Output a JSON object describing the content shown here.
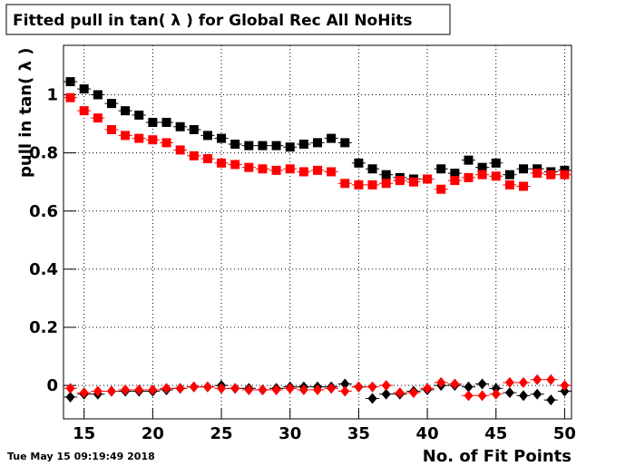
{
  "chart_data": {
    "type": "scatter",
    "title": "Fitted pull in tan( λ ) for Global Rec All NoHits",
    "x_label": "No. of Fit Points",
    "y_label": "pull in tan( λ )",
    "timestamp": "Tue May 15 09:19:49 2018",
    "x": [
      14,
      15,
      16,
      17,
      18,
      19,
      20,
      21,
      22,
      23,
      24,
      25,
      26,
      27,
      28,
      29,
      30,
      31,
      32,
      33,
      34,
      35,
      36,
      37,
      38,
      39,
      40,
      41,
      42,
      43,
      44,
      45,
      46,
      47,
      48,
      49,
      50
    ],
    "series": [
      {
        "color": "#000000",
        "marker": "square",
        "values": [
          1.045,
          1.02,
          1.0,
          0.97,
          0.945,
          0.93,
          0.905,
          0.905,
          0.89,
          0.88,
          0.86,
          0.85,
          0.83,
          0.825,
          0.825,
          0.825,
          0.82,
          0.83,
          0.835,
          0.85,
          0.835,
          0.765,
          0.745,
          0.725,
          0.715,
          0.71,
          0.71,
          0.745,
          0.73,
          0.775,
          0.75,
          0.765,
          0.725,
          0.745,
          0.745,
          0.735,
          0.74
        ]
      },
      {
        "color": "#ff0000",
        "marker": "square",
        "values": [
          0.99,
          0.945,
          0.92,
          0.88,
          0.86,
          0.85,
          0.845,
          0.835,
          0.81,
          0.79,
          0.78,
          0.765,
          0.76,
          0.75,
          0.745,
          0.74,
          0.745,
          0.735,
          0.74,
          0.735,
          0.695,
          0.69,
          0.69,
          0.695,
          0.705,
          0.7,
          0.71,
          0.675,
          0.705,
          0.715,
          0.725,
          0.72,
          0.69,
          0.685,
          0.73,
          0.725,
          0.725
        ]
      },
      {
        "color": "#000000",
        "marker": "diamond",
        "values": [
          -0.04,
          -0.03,
          -0.03,
          -0.02,
          -0.02,
          -0.02,
          -0.02,
          -0.015,
          -0.01,
          -0.005,
          -0.005,
          0,
          -0.01,
          -0.01,
          -0.015,
          -0.01,
          -0.005,
          -0.005,
          -0.005,
          -0.005,
          0.005,
          -0.005,
          -0.045,
          -0.03,
          -0.03,
          -0.02,
          -0.015,
          0,
          0,
          -0.005,
          0.005,
          -0.01,
          -0.025,
          -0.035,
          -0.03,
          -0.05,
          -0.02
        ]
      },
      {
        "color": "#ff0000",
        "marker": "diamond",
        "values": [
          -0.01,
          -0.025,
          -0.02,
          -0.02,
          -0.015,
          -0.015,
          -0.015,
          -0.01,
          -0.01,
          -0.005,
          -0.005,
          -0.01,
          -0.01,
          -0.015,
          -0.015,
          -0.015,
          -0.01,
          -0.015,
          -0.015,
          -0.01,
          -0.02,
          -0.005,
          -0.005,
          0,
          -0.025,
          -0.025,
          -0.01,
          0.01,
          0.005,
          -0.035,
          -0.035,
          -0.03,
          0.01,
          0.01,
          0.02,
          0.02,
          0
        ]
      }
    ],
    "xlim": [
      13.5,
      50.5
    ],
    "ylim": [
      -0.115,
      1.17
    ],
    "xticks": [
      15,
      20,
      25,
      30,
      35,
      40,
      45,
      50
    ],
    "yticks": [
      0,
      0.2,
      0.4,
      0.6,
      0.8,
      1
    ],
    "grid": true
  }
}
